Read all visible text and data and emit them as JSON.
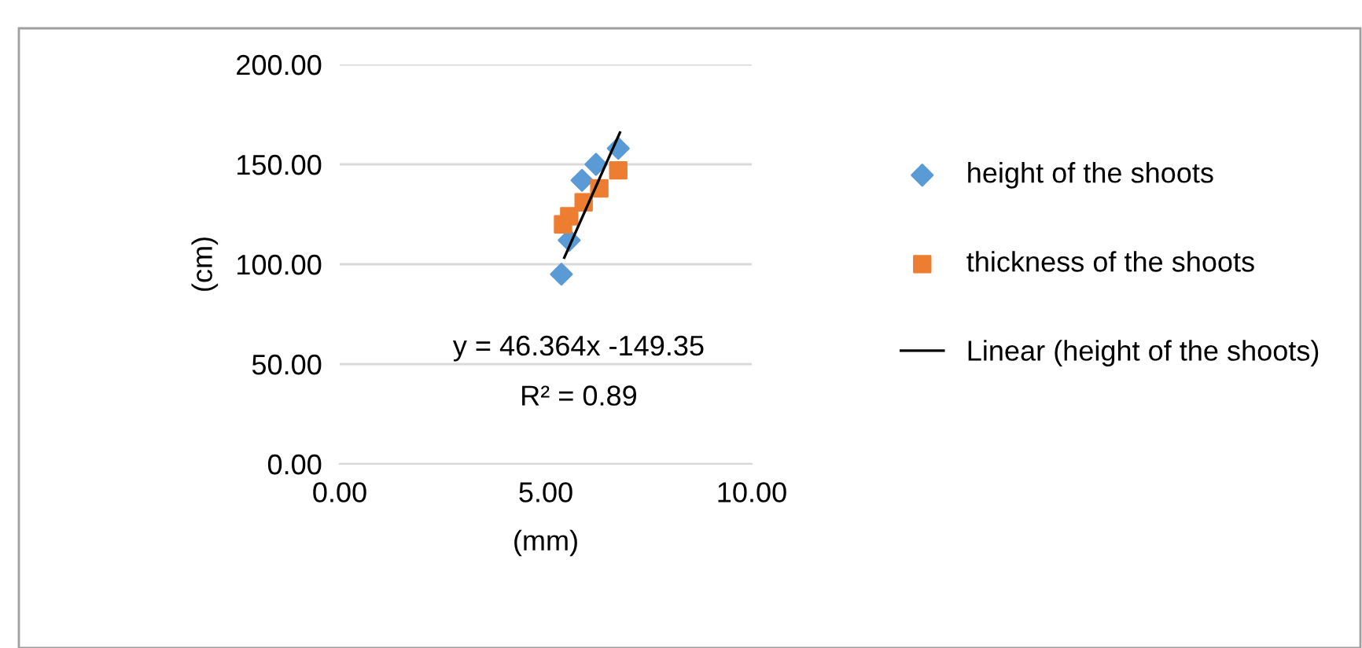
{
  "chart_data": {
    "type": "scatter",
    "xlabel": "(mm)",
    "ylabel": "(cm)",
    "xlim": [
      0,
      10
    ],
    "xticks": [
      {
        "value": 0,
        "label": "0.00"
      },
      {
        "value": 5,
        "label": "5.00"
      },
      {
        "value": 10,
        "label": "10.00"
      }
    ],
    "ylim": [
      0,
      200
    ],
    "yticks": [
      {
        "value": 0,
        "label": "0.00"
      },
      {
        "value": 50,
        "label": "50.00"
      },
      {
        "value": 100,
        "label": "100.00"
      },
      {
        "value": 150,
        "label": "150.00"
      },
      {
        "value": 200,
        "label": "200.00"
      }
    ],
    "grid": "y",
    "legend": "right",
    "series": [
      {
        "name": "height of the shoots",
        "color": "#5b9bd5",
        "marker": "diamond",
        "x": [
          5.38,
          5.57,
          5.88,
          6.22,
          6.76
        ],
        "values": [
          95,
          112,
          142,
          150,
          158
        ]
      },
      {
        "name": "thickness of the shoots",
        "color": "#ed7d31",
        "marker": "square",
        "x": [
          5.42,
          5.57,
          5.92,
          6.3,
          6.76
        ],
        "values": [
          120,
          124,
          131,
          138,
          147
        ]
      },
      {
        "name": "Linear (height of the shoots)",
        "type": "line",
        "color": "#000000",
        "marker": "none",
        "x": [
          5.45,
          6.8
        ],
        "values": [
          103.3,
          165.9
        ]
      }
    ],
    "annotations": [
      "y = 46.364x -149.35",
      "R² = 0.89"
    ]
  }
}
